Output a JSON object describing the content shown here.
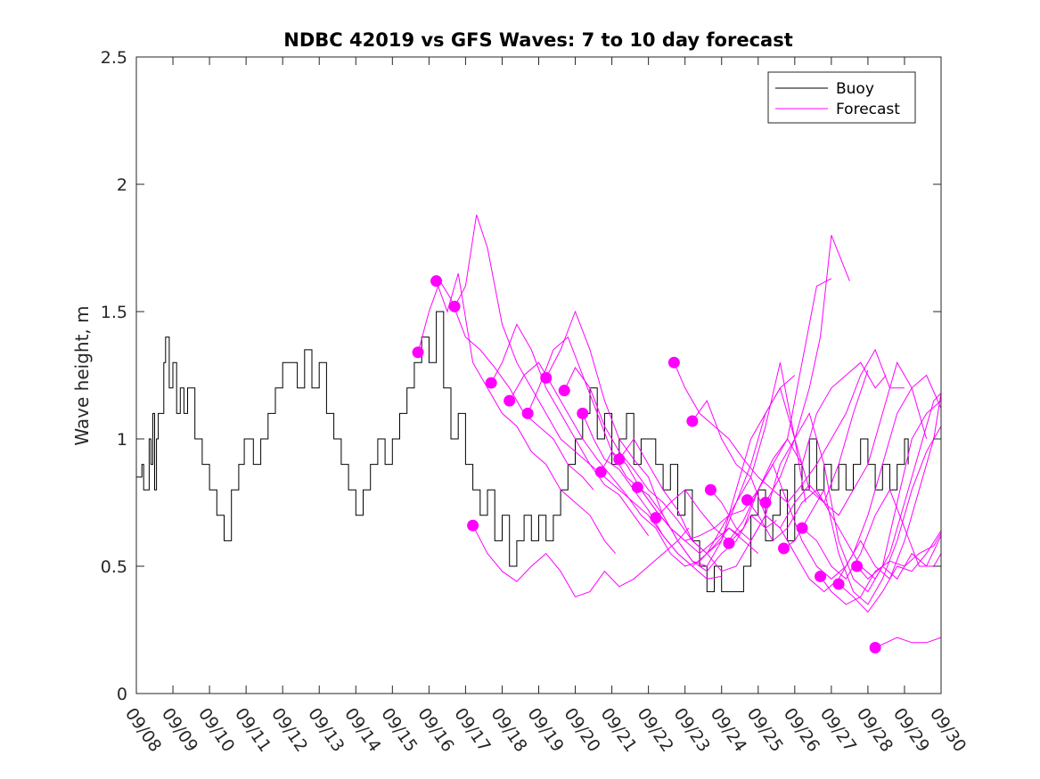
{
  "chart_data": {
    "type": "line",
    "title": "NDBC 42019 vs GFS Waves: 7 to 10 day forecast",
    "xlabel": "",
    "ylabel": "Wave height, m",
    "xlim": [
      0,
      22
    ],
    "ylim": [
      0,
      2.5
    ],
    "x_tick_values": [
      0,
      1,
      2,
      3,
      4,
      5,
      6,
      7,
      8,
      9,
      10,
      11,
      12,
      13,
      14,
      15,
      16,
      17,
      18,
      19,
      20,
      21,
      22
    ],
    "x_tick_labels": [
      "09/08",
      "09/09",
      "09/10",
      "09/11",
      "09/12",
      "09/13",
      "09/14",
      "09/15",
      "09/16",
      "09/17",
      "09/18",
      "09/19",
      "09/20",
      "09/21",
      "09/22",
      "09/23",
      "09/24",
      "09/25",
      "09/26",
      "09/27",
      "09/28",
      "09/29",
      "09/30"
    ],
    "y_ticks": [
      0,
      0.5,
      1,
      1.5,
      2,
      2.5
    ],
    "y_tick_labels": [
      "0",
      "0.5",
      "1",
      "1.5",
      "2",
      "2.5"
    ],
    "legend": {
      "position": "top-right",
      "entries": [
        {
          "label": "Buoy",
          "color": "#000000"
        },
        {
          "label": "Forecast",
          "color": "#ff00ff"
        }
      ]
    },
    "colors": {
      "buoy": "#000000",
      "forecast": "#ff00ff",
      "axes": "#262626"
    },
    "buoy_series": {
      "name": "Buoy",
      "x": [
        0,
        0.15,
        0.2,
        0.35,
        0.4,
        0.45,
        0.5,
        0.55,
        0.6,
        0.75,
        0.8,
        0.9,
        1.0,
        1.1,
        1.2,
        1.3,
        1.4,
        1.6,
        1.8,
        2.0,
        2.2,
        2.4,
        2.6,
        2.8,
        2.95,
        3.05,
        3.2,
        3.4,
        3.6,
        3.8,
        4.0,
        4.2,
        4.4,
        4.6,
        4.8,
        5.0,
        5.2,
        5.4,
        5.6,
        5.8,
        6.0,
        6.2,
        6.4,
        6.6,
        6.8,
        7.0,
        7.2,
        7.4,
        7.6,
        7.8,
        8.0,
        8.2,
        8.4,
        8.6,
        8.8,
        9.0,
        9.2,
        9.4,
        9.6,
        9.8,
        10.0,
        10.2,
        10.4,
        10.6,
        10.8,
        11.0,
        11.2,
        11.4,
        11.6,
        11.8,
        12.0,
        12.2,
        12.4,
        12.6,
        12.8,
        13.0,
        13.2,
        13.4,
        13.6,
        13.8,
        14.0,
        14.2,
        14.4,
        14.6,
        14.8,
        15.0,
        15.2,
        15.4,
        15.6,
        15.8,
        16.0,
        16.2,
        16.4,
        16.6,
        16.8,
        17.0,
        17.2,
        17.4,
        17.6,
        17.8,
        18.0,
        18.2,
        18.4,
        18.6,
        18.8,
        19.0,
        19.2,
        19.4,
        19.6,
        19.8,
        20.0,
        20.2,
        20.4,
        20.6,
        20.8,
        21.0,
        21.1
      ],
      "y": [
        0.85,
        0.9,
        0.8,
        1.0,
        0.9,
        1.1,
        0.8,
        1.0,
        1.1,
        1.3,
        1.4,
        1.2,
        1.3,
        1.1,
        1.2,
        1.1,
        1.2,
        1.0,
        0.9,
        0.8,
        0.7,
        0.6,
        0.8,
        0.9,
        1.0,
        1.0,
        0.9,
        1.0,
        1.1,
        1.2,
        1.3,
        1.3,
        1.2,
        1.35,
        1.2,
        1.3,
        1.1,
        1.0,
        0.9,
        0.8,
        0.7,
        0.8,
        0.9,
        1.0,
        0.9,
        1.0,
        1.1,
        1.2,
        1.3,
        1.4,
        1.3,
        1.5,
        1.2,
        1.0,
        1.1,
        0.9,
        0.8,
        0.7,
        0.8,
        0.6,
        0.7,
        0.5,
        0.6,
        0.7,
        0.6,
        0.7,
        0.6,
        0.7,
        0.8,
        0.9,
        1.0,
        1.1,
        1.2,
        1.0,
        1.1,
        0.9,
        1.0,
        1.1,
        0.9,
        1.0,
        1.0,
        0.9,
        0.8,
        0.9,
        0.7,
        0.8,
        0.6,
        0.5,
        0.4,
        0.5,
        0.4,
        0.4,
        0.4,
        0.5,
        0.7,
        0.8,
        0.6,
        0.7,
        0.8,
        0.6,
        0.9,
        0.8,
        1.0,
        0.8,
        0.9,
        0.8,
        0.9,
        0.8,
        0.9,
        1.0,
        0.9,
        0.8,
        0.9,
        0.8,
        0.9,
        1.0,
        0.9
      ]
    },
    "forecast_runs": [
      {
        "x": [
          7.7,
          8.0,
          8.3,
          8.6,
          9.0,
          9.4,
          9.8,
          10.2,
          10.6,
          11.0,
          11.4,
          11.8,
          12.2,
          12.5
        ],
        "y": [
          1.34,
          1.5,
          1.62,
          1.55,
          1.4,
          1.35,
          1.28,
          1.2,
          1.1,
          1.05,
          1.0,
          0.9,
          0.85,
          0.8
        ]
      },
      {
        "x": [
          8.2,
          8.5,
          8.8,
          9.2,
          9.6,
          10.0,
          10.4,
          10.8,
          11.2,
          11.6,
          12.0,
          12.4,
          12.8,
          13.1
        ],
        "y": [
          1.62,
          1.5,
          1.65,
          1.3,
          1.2,
          1.1,
          1.05,
          0.95,
          0.9,
          0.8,
          0.75,
          0.7,
          0.6,
          0.55
        ]
      },
      {
        "x": [
          8.7,
          9.0,
          9.3,
          9.6,
          10.0,
          10.4,
          10.8,
          11.2,
          11.6,
          12.0,
          12.4,
          12.8,
          13.2,
          13.6,
          14.0
        ],
        "y": [
          1.52,
          1.6,
          1.88,
          1.75,
          1.45,
          1.3,
          1.2,
          1.1,
          1.0,
          0.95,
          0.9,
          0.82,
          0.78,
          0.7,
          0.62
        ]
      },
      {
        "x": [
          9.2,
          9.6,
          10.0,
          10.4,
          10.8,
          11.2,
          11.6,
          12.0,
          12.4,
          12.8,
          13.2,
          13.6,
          14.0,
          14.4,
          14.8,
          15.1
        ],
        "y": [
          0.66,
          0.55,
          0.48,
          0.44,
          0.5,
          0.55,
          0.48,
          0.38,
          0.4,
          0.48,
          0.42,
          0.45,
          0.5,
          0.55,
          0.6,
          0.65
        ]
      },
      {
        "x": [
          9.7,
          10.0,
          10.4,
          10.8,
          11.2,
          11.6,
          12.0,
          12.4,
          12.8,
          13.2,
          13.6,
          14.0,
          14.4,
          14.8,
          15.2,
          15.6,
          16.0
        ],
        "y": [
          1.22,
          1.3,
          1.45,
          1.35,
          1.2,
          1.1,
          1.0,
          0.9,
          0.85,
          0.8,
          0.75,
          0.7,
          0.62,
          0.55,
          0.5,
          0.45,
          0.46
        ]
      },
      {
        "x": [
          10.2,
          10.6,
          11.0,
          11.4,
          11.8,
          12.2,
          12.6,
          13.0,
          13.4,
          13.8,
          14.2,
          14.6,
          15.0,
          15.4,
          15.8,
          16.2,
          16.5
        ],
        "y": [
          1.15,
          1.25,
          1.3,
          1.2,
          1.1,
          1.0,
          0.92,
          0.85,
          0.78,
          0.7,
          0.65,
          0.55,
          0.5,
          0.52,
          0.58,
          0.65,
          0.62
        ]
      },
      {
        "x": [
          10.7,
          11.0,
          11.4,
          11.8,
          12.2,
          12.6,
          13.0,
          13.4,
          13.8,
          14.2,
          14.6,
          15.0,
          15.4,
          15.8,
          16.2,
          16.6,
          17.0
        ],
        "y": [
          1.1,
          1.2,
          1.35,
          1.4,
          1.25,
          1.1,
          0.95,
          0.85,
          0.8,
          0.72,
          0.65,
          0.6,
          0.55,
          0.6,
          0.65,
          0.6,
          0.55
        ]
      },
      {
        "x": [
          11.2,
          11.6,
          12.0,
          12.4,
          12.8,
          13.2,
          13.6,
          14.0,
          14.4,
          14.8,
          15.2,
          15.6,
          16.0,
          16.4,
          16.8,
          17.2,
          17.5
        ],
        "y": [
          1.24,
          1.35,
          1.5,
          1.35,
          1.15,
          1.0,
          0.92,
          0.85,
          0.7,
          0.6,
          0.52,
          0.48,
          0.55,
          0.6,
          0.7,
          0.65,
          0.68
        ]
      },
      {
        "x": [
          11.7,
          12.0,
          12.4,
          12.8,
          13.2,
          13.6,
          14.0,
          14.4,
          14.8,
          15.2,
          15.6,
          16.0,
          16.4,
          16.8,
          17.2,
          17.6,
          18.0
        ],
        "y": [
          1.19,
          1.28,
          1.2,
          1.05,
          0.95,
          0.88,
          0.8,
          0.75,
          0.68,
          0.6,
          0.55,
          0.6,
          0.8,
          1.0,
          1.1,
          1.2,
          1.25
        ]
      },
      {
        "x": [
          12.2,
          12.5,
          12.8,
          13.2,
          13.6,
          14.0,
          14.4,
          14.8,
          15.2,
          15.6,
          16.0,
          16.4,
          16.8,
          17.2,
          17.6,
          18.0,
          18.3
        ],
        "y": [
          1.1,
          1.0,
          0.92,
          0.88,
          0.8,
          0.72,
          0.62,
          0.55,
          0.5,
          0.55,
          0.65,
          0.75,
          0.9,
          1.1,
          1.2,
          1.0,
          0.75
        ]
      },
      {
        "x": [
          12.7,
          13.0,
          13.4,
          13.8,
          14.2,
          14.6,
          15.0,
          15.4,
          15.8,
          16.2,
          16.6,
          17.0,
          17.4,
          17.8,
          18.2,
          18.6,
          19.0
        ],
        "y": [
          0.87,
          0.95,
          0.9,
          0.8,
          0.72,
          0.65,
          0.6,
          0.62,
          0.65,
          0.7,
          0.72,
          0.8,
          0.9,
          1.0,
          1.3,
          1.6,
          1.63
        ]
      },
      {
        "x": [
          13.2,
          13.6,
          14.0,
          14.4,
          14.8,
          15.2,
          15.6,
          16.0,
          16.4,
          16.8,
          17.2,
          17.6,
          18.0,
          18.4,
          18.7,
          19.0,
          19.5
        ],
        "y": [
          0.92,
          1.0,
          0.9,
          0.8,
          0.72,
          0.6,
          0.55,
          0.48,
          0.5,
          0.6,
          0.7,
          0.9,
          1.0,
          1.2,
          1.4,
          1.8,
          1.62
        ]
      },
      {
        "x": [
          13.7,
          14.0,
          14.4,
          14.8,
          15.2,
          15.6,
          16.0,
          16.4,
          16.8,
          17.2,
          17.6,
          18.0,
          18.4,
          18.8,
          19.2,
          19.6,
          20.0
        ],
        "y": [
          0.81,
          0.78,
          0.7,
          0.6,
          0.52,
          0.5,
          0.6,
          0.75,
          0.85,
          1.05,
          1.3,
          1.0,
          0.8,
          0.75,
          0.9,
          1.1,
          1.27
        ]
      },
      {
        "x": [
          14.2,
          14.6,
          15.0,
          15.4,
          15.8,
          16.2,
          16.6,
          17.0,
          17.4,
          17.8,
          18.2,
          18.6,
          19.0,
          19.4,
          19.8,
          20.2,
          20.5
        ],
        "y": [
          0.69,
          0.75,
          0.8,
          0.72,
          0.65,
          0.6,
          0.68,
          0.8,
          0.92,
          1.0,
          0.9,
          1.1,
          1.2,
          1.25,
          1.3,
          1.2,
          1.25
        ]
      },
      {
        "x": [
          14.7,
          15.0,
          15.4,
          15.8,
          16.2,
          16.6,
          17.0,
          17.4,
          17.8,
          18.2,
          18.6,
          19.0,
          19.4,
          19.8,
          20.2,
          20.6,
          21.0
        ],
        "y": [
          1.3,
          1.2,
          1.1,
          1.05,
          1.0,
          0.92,
          0.85,
          0.8,
          0.75,
          0.82,
          0.9,
          1.0,
          1.1,
          1.25,
          1.35,
          1.2,
          1.2
        ]
      },
      {
        "x": [
          15.2,
          15.6,
          16.0,
          16.4,
          16.8,
          17.2,
          17.6,
          18.0,
          18.4,
          18.8,
          19.2,
          19.6,
          20.0,
          20.4,
          20.8,
          21.2,
          21.6
        ],
        "y": [
          1.07,
          1.15,
          1.0,
          0.9,
          0.85,
          0.7,
          0.65,
          0.75,
          0.82,
          0.75,
          0.7,
          0.8,
          0.9,
          1.1,
          1.3,
          1.2,
          1.0
        ]
      },
      {
        "x": [
          15.7,
          16.0,
          16.4,
          16.8,
          17.2,
          17.6,
          18.0,
          18.4,
          18.8,
          19.2,
          19.6,
          20.0,
          20.4,
          20.8,
          21.2,
          21.6,
          22.0
        ],
        "y": [
          0.8,
          0.75,
          0.65,
          0.6,
          0.7,
          0.65,
          0.55,
          0.45,
          0.4,
          0.45,
          0.55,
          0.7,
          0.9,
          1.1,
          1.2,
          1.25,
          1.12
        ]
      },
      {
        "x": [
          16.2,
          16.6,
          17.0,
          17.4,
          17.8,
          18.2,
          18.6,
          19.0,
          19.4,
          19.8,
          20.2,
          20.6,
          21.0,
          21.4,
          21.8,
          22.0
        ],
        "y": [
          0.59,
          0.65,
          0.8,
          0.9,
          0.75,
          0.6,
          0.5,
          0.45,
          0.5,
          0.6,
          0.5,
          0.45,
          0.6,
          0.8,
          1.0,
          1.18
        ]
      },
      {
        "x": [
          16.7,
          17.0,
          17.4,
          17.8,
          18.2,
          18.6,
          19.0,
          19.4,
          19.8,
          20.2,
          20.6,
          21.0,
          21.4,
          21.8,
          22.0
        ],
        "y": [
          0.76,
          0.7,
          0.6,
          0.65,
          0.75,
          0.8,
          0.7,
          0.6,
          0.5,
          0.45,
          0.55,
          0.75,
          0.95,
          1.15,
          1.18
        ]
      },
      {
        "x": [
          17.2,
          17.6,
          18.0,
          18.4,
          18.8,
          19.2,
          19.6,
          20.0,
          20.4,
          20.8,
          21.2,
          21.6,
          22.0
        ],
        "y": [
          0.75,
          0.85,
          1.0,
          1.1,
          0.9,
          0.6,
          0.45,
          0.4,
          0.5,
          0.75,
          1.0,
          1.1,
          1.15
        ]
      },
      {
        "x": [
          17.7,
          18.0,
          18.4,
          18.8,
          19.2,
          19.6,
          20.0,
          20.4,
          20.8,
          21.2,
          21.6,
          22.0
        ],
        "y": [
          0.57,
          0.6,
          0.7,
          0.8,
          0.55,
          0.4,
          0.35,
          0.45,
          0.6,
          0.8,
          0.95,
          1.05
        ]
      },
      {
        "x": [
          18.2,
          18.6,
          19.0,
          19.4,
          19.8,
          20.2,
          20.6,
          21.0,
          21.4,
          21.8,
          22.0
        ],
        "y": [
          0.65,
          0.6,
          0.5,
          0.45,
          0.55,
          0.7,
          0.8,
          0.65,
          0.5,
          0.5,
          0.55
        ]
      },
      {
        "x": [
          18.7,
          19.0,
          19.4,
          19.8,
          20.2,
          20.6,
          21.0,
          21.4,
          21.8,
          22.0
        ],
        "y": [
          0.46,
          0.4,
          0.35,
          0.38,
          0.48,
          0.52,
          0.5,
          0.55,
          0.58,
          0.63
        ]
      },
      {
        "x": [
          19.2,
          19.6,
          20.0,
          20.4,
          20.8,
          21.2,
          21.6,
          22.0
        ],
        "y": [
          0.43,
          0.38,
          0.32,
          0.4,
          0.5,
          0.48,
          0.55,
          0.64
        ]
      },
      {
        "x": [
          19.7,
          20.0,
          20.4,
          20.8,
          21.2,
          21.6,
          22.0
        ],
        "y": [
          0.5,
          0.45,
          0.5,
          0.45,
          0.55,
          0.5,
          0.62
        ]
      },
      {
        "x": [
          20.2,
          20.5,
          20.8,
          21.2,
          21.6,
          22.0
        ],
        "y": [
          0.18,
          0.2,
          0.22,
          0.2,
          0.2,
          0.22
        ]
      }
    ],
    "forecast_markers": {
      "x": [
        7.7,
        8.2,
        8.7,
        9.2,
        9.7,
        10.2,
        10.7,
        11.2,
        11.7,
        12.2,
        12.7,
        13.2,
        13.7,
        14.2,
        14.7,
        15.2,
        15.7,
        16.2,
        16.7,
        17.2,
        17.7,
        18.2,
        18.7,
        19.2,
        19.7,
        20.2
      ],
      "y": [
        1.34,
        1.62,
        1.52,
        0.66,
        1.22,
        1.15,
        1.1,
        1.24,
        1.19,
        1.1,
        0.87,
        0.92,
        0.81,
        0.69,
        1.3,
        1.07,
        0.8,
        0.59,
        0.76,
        0.75,
        0.57,
        0.65,
        0.46,
        0.43,
        0.5,
        0.18
      ]
    }
  }
}
